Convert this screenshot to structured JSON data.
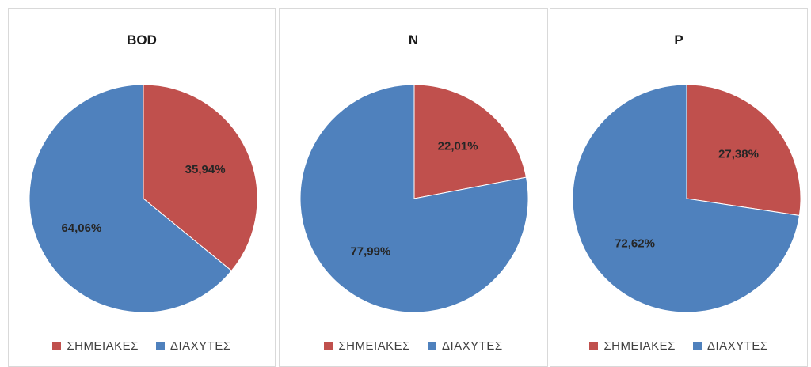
{
  "chart_data": [
    {
      "type": "pie",
      "title": "BOD",
      "slices": [
        {
          "label": "ΣΗΜΕΙΑΚΕΣ",
          "value": 35.94,
          "display": "35,94%",
          "color": "#c0504d"
        },
        {
          "label": "ΔΙΑΧΥΤΕΣ",
          "value": 64.06,
          "display": "64,06%",
          "color": "#4f81bd"
        }
      ],
      "legend": "bottom"
    },
    {
      "type": "pie",
      "title": "N",
      "slices": [
        {
          "label": "ΣΗΜΕΙΑΚΕΣ",
          "value": 22.01,
          "display": "22,01%",
          "color": "#c0504d"
        },
        {
          "label": "ΔΙΑΧΥΤΕΣ",
          "value": 77.99,
          "display": "77,99%",
          "color": "#4f81bd"
        }
      ],
      "legend": "bottom"
    },
    {
      "type": "pie",
      "title": "P",
      "slices": [
        {
          "label": "ΣΗΜΕΙΑΚΕΣ",
          "value": 27.38,
          "display": "27,38%",
          "color": "#c0504d"
        },
        {
          "label": "ΔΙΑΧΥΤΕΣ",
          "value": 72.62,
          "display": "72,62%",
          "color": "#4f81bd"
        }
      ],
      "legend": "bottom"
    }
  ],
  "legend": {
    "items": [
      {
        "label": "ΣΗΜΕΙΑΚΕΣ",
        "color": "#c0504d"
      },
      {
        "label": "ΔΙΑΧΥΤΕΣ",
        "color": "#4f81bd"
      }
    ]
  }
}
